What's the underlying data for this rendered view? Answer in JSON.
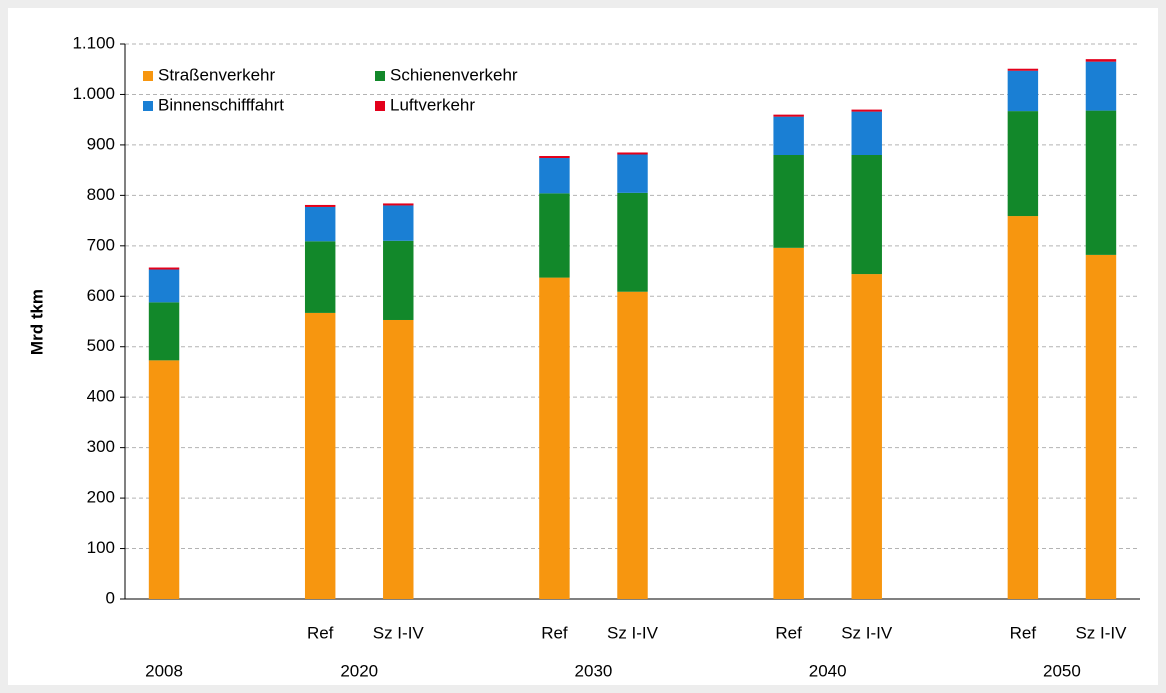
{
  "chart_data": {
    "type": "stacked_bar",
    "y_label": "Mrd tkm",
    "categories": [
      null,
      "Ref",
      "Sz I-IV",
      "Ref",
      "Sz I-IV",
      "Ref",
      "Sz I-IV",
      "Ref",
      "Sz I-IV"
    ],
    "category_groups": [
      "2008",
      "2020",
      "2020",
      "2030",
      "2030",
      "2040",
      "2040",
      "2050",
      "2050"
    ],
    "series": [
      {
        "name": "Straßenverkehr",
        "color": "#f7960f",
        "values": [
          473,
          567,
          553,
          637,
          609,
          696,
          644,
          759,
          682
        ]
      },
      {
        "name": "Schienenverkehr",
        "color": "#12882a",
        "values": [
          115,
          142,
          157,
          167,
          196,
          184,
          236,
          208,
          286
        ]
      },
      {
        "name": "Binnenschifffahrt",
        "color": "#1a7fd4",
        "values": [
          65,
          68,
          70,
          70,
          76,
          76,
          86,
          80,
          97
        ]
      },
      {
        "name": "Luftverkehr",
        "color": "#e3001b",
        "values": [
          4,
          4,
          4,
          4,
          4,
          4,
          4,
          4,
          5
        ]
      }
    ],
    "ylim": [
      0,
      1100
    ],
    "yticks": [
      0,
      100,
      200,
      300,
      400,
      500,
      600,
      700,
      800,
      900,
      {
        "value": 1000,
        "label": "1.000"
      },
      {
        "value": 1100,
        "label": "1.100"
      }
    ],
    "grid": true,
    "legend": "top-left"
  }
}
